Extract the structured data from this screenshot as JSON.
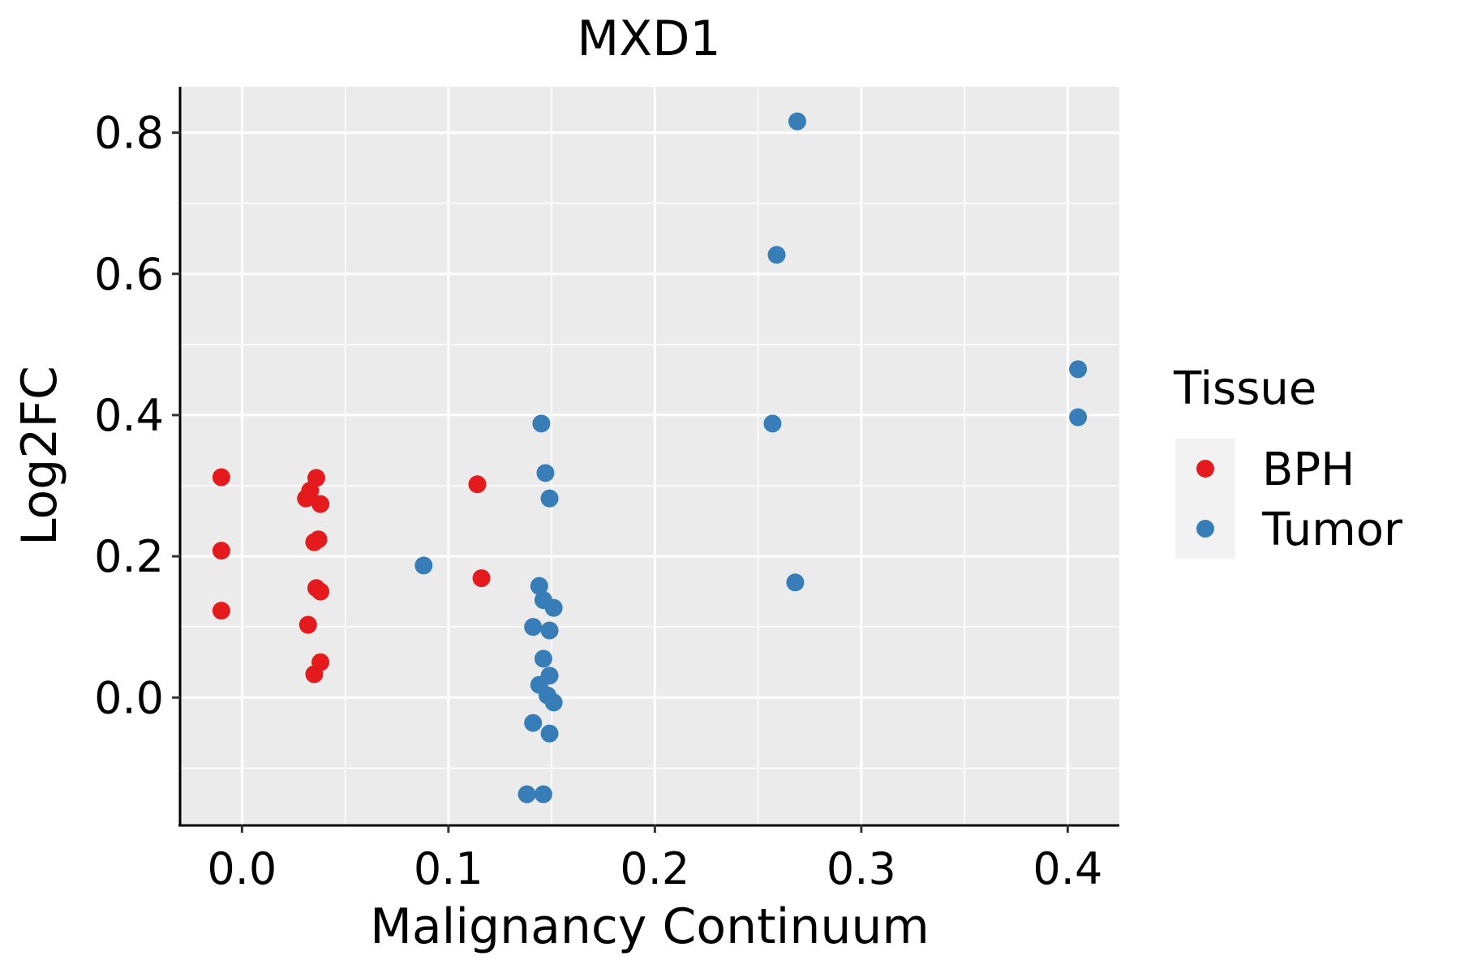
{
  "chart_data": {
    "type": "scatter",
    "title": "MXD1",
    "xlabel": "Malignancy Continuum",
    "ylabel": "Log2FC",
    "xlim": [
      -0.03,
      0.425
    ],
    "ylim": [
      -0.18,
      0.865
    ],
    "x_ticks": [
      0.0,
      0.1,
      0.2,
      0.3,
      0.4
    ],
    "x_tick_labels": [
      "0.0",
      "0.1",
      "0.2",
      "0.3",
      "0.4"
    ],
    "y_ticks": [
      0.0,
      0.2,
      0.4,
      0.6,
      0.8
    ],
    "y_tick_labels": [
      "0.0",
      "0.2",
      "0.4",
      "0.6",
      "0.8"
    ],
    "grid": true,
    "legend": {
      "title": "Tissue",
      "position": "right"
    },
    "series": [
      {
        "name": "BPH",
        "color": "#E41A1C",
        "points": [
          [
            -0.01,
            0.312
          ],
          [
            -0.01,
            0.208
          ],
          [
            -0.01,
            0.123
          ],
          [
            0.031,
            0.282
          ],
          [
            0.033,
            0.293
          ],
          [
            0.036,
            0.311
          ],
          [
            0.038,
            0.274
          ],
          [
            0.035,
            0.22
          ],
          [
            0.037,
            0.224
          ],
          [
            0.036,
            0.155
          ],
          [
            0.038,
            0.15
          ],
          [
            0.032,
            0.103
          ],
          [
            0.038,
            0.05
          ],
          [
            0.035,
            0.033
          ],
          [
            0.114,
            0.302
          ],
          [
            0.116,
            0.169
          ]
        ]
      },
      {
        "name": "Tumor",
        "color": "#377EB8",
        "points": [
          [
            0.088,
            0.187
          ],
          [
            0.145,
            0.388
          ],
          [
            0.147,
            0.318
          ],
          [
            0.149,
            0.282
          ],
          [
            0.144,
            0.158
          ],
          [
            0.146,
            0.138
          ],
          [
            0.151,
            0.127
          ],
          [
            0.141,
            0.1
          ],
          [
            0.149,
            0.095
          ],
          [
            0.146,
            0.055
          ],
          [
            0.149,
            0.031
          ],
          [
            0.144,
            0.018
          ],
          [
            0.148,
            0.003
          ],
          [
            0.151,
            -0.007
          ],
          [
            0.141,
            -0.036
          ],
          [
            0.149,
            -0.051
          ],
          [
            0.138,
            -0.137
          ],
          [
            0.146,
            -0.137
          ],
          [
            0.269,
            0.816
          ],
          [
            0.259,
            0.627
          ],
          [
            0.257,
            0.388
          ],
          [
            0.268,
            0.163
          ],
          [
            0.405,
            0.465
          ],
          [
            0.405,
            0.397
          ]
        ]
      }
    ]
  }
}
